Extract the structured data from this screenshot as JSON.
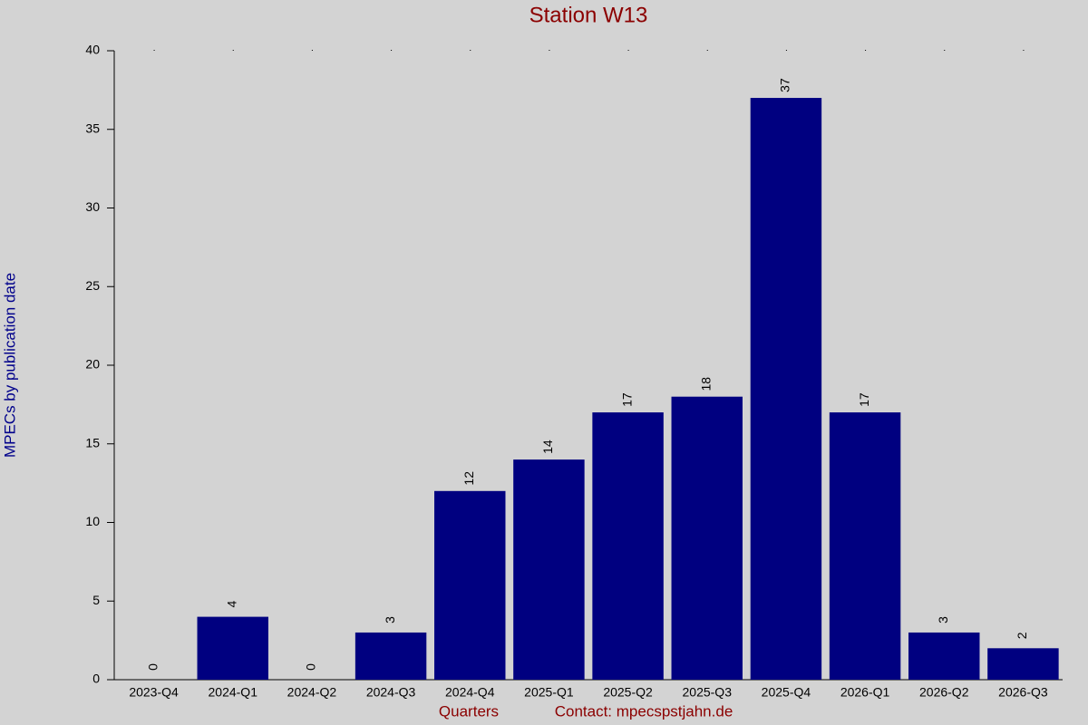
{
  "chart_data": {
    "type": "bar",
    "title": "Station W13",
    "y_label": "MPECs by publication date",
    "x_label": "Quarters",
    "annotation": "Contact: mpecspstjahn.de",
    "categories": [
      "2023-Q4",
      "2024-Q1",
      "2024-Q2",
      "2024-Q3",
      "2024-Q4",
      "2025-Q1",
      "2025-Q2",
      "2025-Q3",
      "2025-Q4",
      "2026-Q1",
      "2026-Q2",
      "2026-Q3"
    ],
    "values": [
      0,
      4,
      0,
      3,
      12,
      14,
      17,
      18,
      37,
      17,
      3,
      2
    ],
    "color": "#000080",
    "ylim": [
      0,
      40
    ],
    "yticks": [
      0,
      5,
      10,
      15,
      20,
      25,
      30,
      35,
      40
    ],
    "grid": false
  }
}
